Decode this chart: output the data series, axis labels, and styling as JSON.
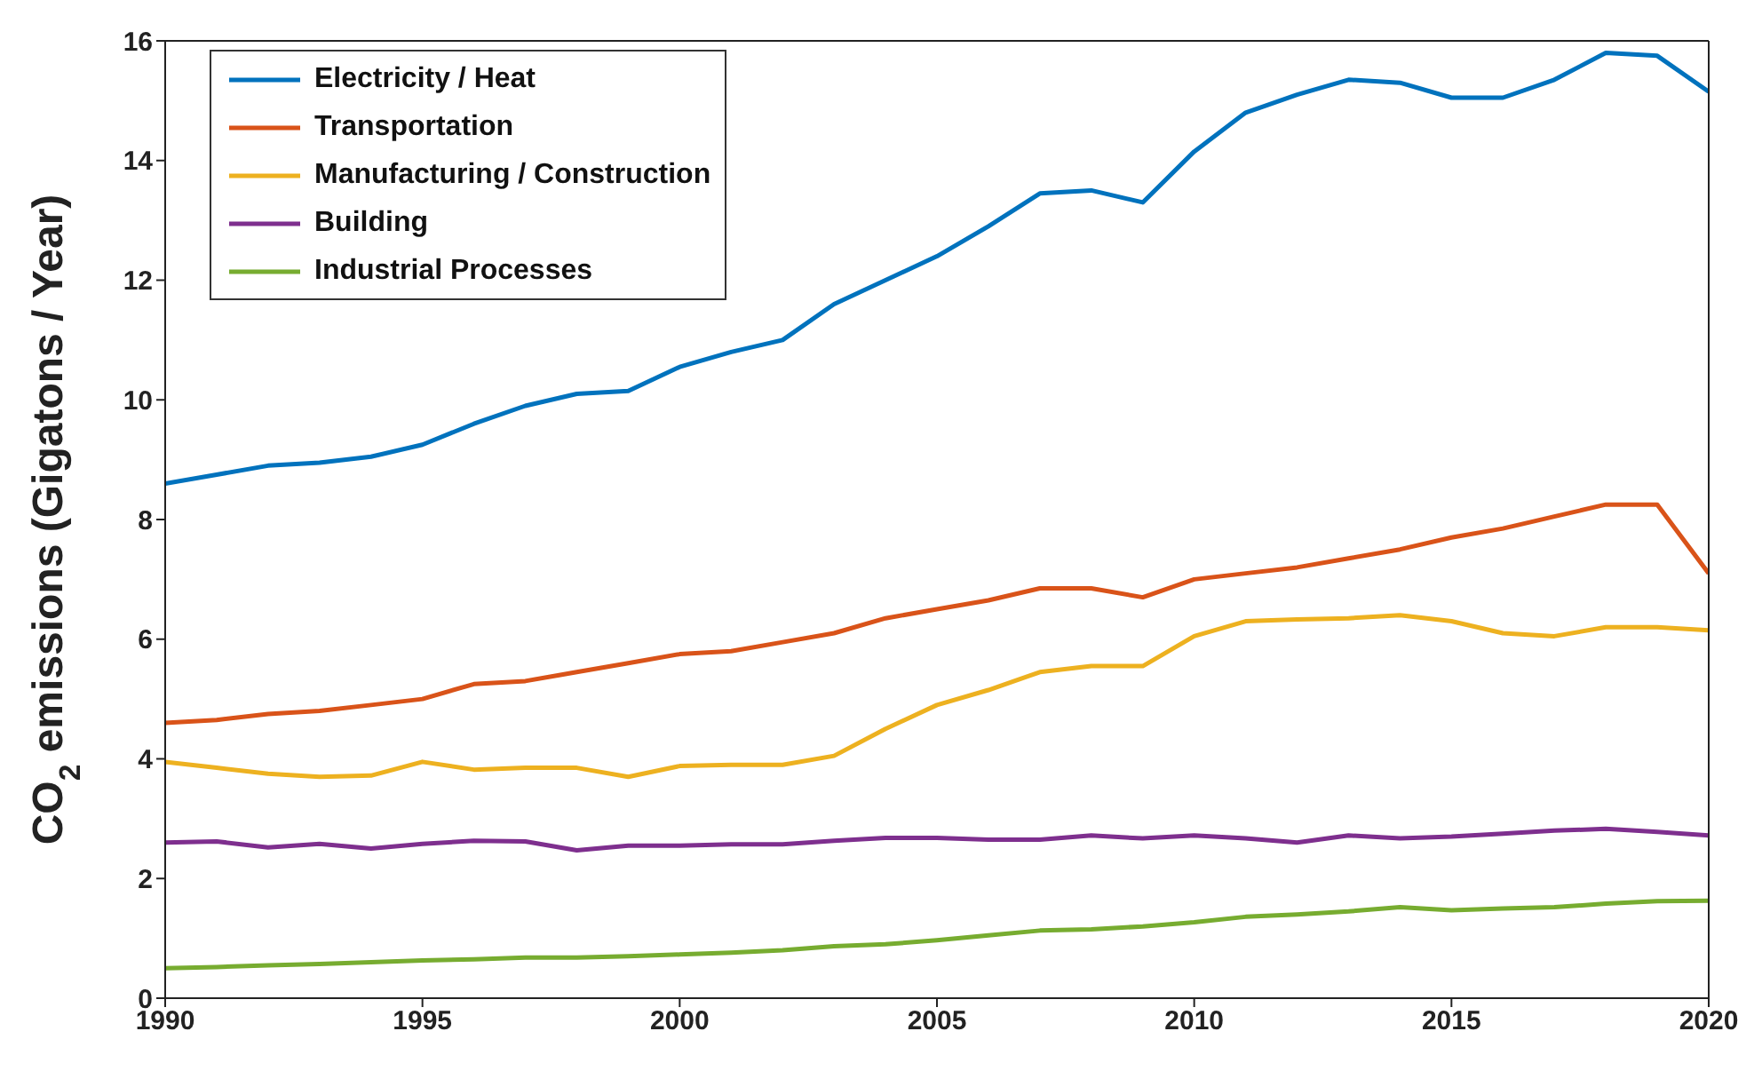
{
  "chart_data": {
    "type": "line",
    "ylabel": "CO$_{2}$ emissions (Gigatons / Year)",
    "x": [
      1990,
      1991,
      1992,
      1993,
      1994,
      1995,
      1996,
      1997,
      1998,
      1999,
      2000,
      2001,
      2002,
      2003,
      2004,
      2005,
      2006,
      2007,
      2008,
      2009,
      2010,
      2011,
      2012,
      2013,
      2014,
      2015,
      2016,
      2017,
      2018,
      2019,
      2020
    ],
    "series": [
      {
        "name": "Electricity / Heat",
        "color": "#0072bd",
        "values": [
          8.6,
          8.75,
          8.9,
          8.95,
          9.05,
          9.25,
          9.6,
          9.9,
          10.1,
          10.15,
          10.55,
          10.8,
          11.0,
          11.6,
          12.0,
          12.4,
          12.9,
          13.45,
          13.5,
          13.3,
          14.15,
          14.8,
          15.1,
          15.35,
          15.3,
          15.05,
          15.05,
          15.35,
          15.8,
          15.75,
          15.15
        ]
      },
      {
        "name": "Transportation",
        "color": "#d95319",
        "values": [
          4.6,
          4.65,
          4.75,
          4.8,
          4.9,
          5.0,
          5.25,
          5.3,
          5.45,
          5.6,
          5.75,
          5.8,
          5.95,
          6.1,
          6.35,
          6.5,
          6.65,
          6.85,
          6.85,
          6.7,
          7.0,
          7.1,
          7.2,
          7.35,
          7.5,
          7.7,
          7.85,
          8.05,
          8.25,
          8.25,
          7.1
        ]
      },
      {
        "name": "Manufacturing / Construction",
        "color": "#edb120",
        "values": [
          3.95,
          3.85,
          3.75,
          3.7,
          3.72,
          3.95,
          3.82,
          3.85,
          3.85,
          3.7,
          3.88,
          3.9,
          3.9,
          4.05,
          4.5,
          4.9,
          5.15,
          5.45,
          5.55,
          5.55,
          6.05,
          6.3,
          6.33,
          6.35,
          6.4,
          6.3,
          6.1,
          6.05,
          6.2,
          6.2,
          6.15
        ]
      },
      {
        "name": "Building",
        "color": "#7e2f8e",
        "values": [
          2.6,
          2.62,
          2.52,
          2.58,
          2.5,
          2.58,
          2.63,
          2.62,
          2.47,
          2.55,
          2.55,
          2.57,
          2.57,
          2.63,
          2.68,
          2.68,
          2.65,
          2.65,
          2.72,
          2.67,
          2.72,
          2.67,
          2.6,
          2.72,
          2.67,
          2.7,
          2.75,
          2.8,
          2.83,
          2.78,
          2.72
        ]
      },
      {
        "name": "Industrial Processes",
        "color": "#77ac30",
        "values": [
          0.5,
          0.52,
          0.55,
          0.57,
          0.6,
          0.63,
          0.65,
          0.68,
          0.68,
          0.7,
          0.73,
          0.76,
          0.8,
          0.87,
          0.9,
          0.97,
          1.05,
          1.13,
          1.15,
          1.2,
          1.27,
          1.36,
          1.4,
          1.45,
          1.52,
          1.47,
          1.5,
          1.52,
          1.58,
          1.62,
          1.63
        ]
      }
    ],
    "xlim": [
      1990,
      2020
    ],
    "xticks": [
      1990,
      1995,
      2000,
      2005,
      2010,
      2015,
      2020
    ],
    "ylim": [
      0,
      16
    ],
    "yticks": [
      0,
      2,
      4,
      6,
      8,
      10,
      12,
      14,
      16
    ],
    "grid": false,
    "legend": "top left",
    "marker": "none",
    "line_style": "solid"
  }
}
